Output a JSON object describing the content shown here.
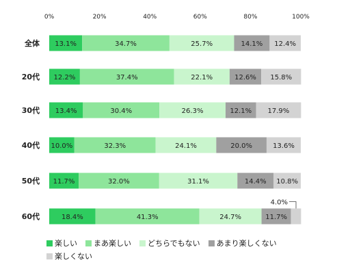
{
  "chart_data": {
    "type": "bar",
    "orientation": "horizontal",
    "stacked": true,
    "normalized": true,
    "categories": [
      "全体",
      "20代",
      "30代",
      "40代",
      "50代",
      "60代"
    ],
    "series": [
      {
        "name": "楽しい",
        "color": "#2ecc5f",
        "values": [
          13.1,
          12.2,
          13.4,
          10.0,
          11.7,
          18.4
        ]
      },
      {
        "name": "まあ楽しい",
        "color": "#8ee59b",
        "values": [
          34.7,
          37.4,
          30.4,
          32.3,
          32.0,
          41.3
        ]
      },
      {
        "name": "どちらでもない",
        "color": "#c9f5cd",
        "values": [
          25.7,
          22.1,
          26.3,
          24.1,
          31.1,
          24.7
        ]
      },
      {
        "name": "あまり楽しくない",
        "color": "#a0a0a0",
        "values": [
          14.1,
          12.6,
          12.1,
          20.0,
          14.4,
          11.7
        ]
      },
      {
        "name": "楽しくない",
        "color": "#d3d3d3",
        "values": [
          12.4,
          15.8,
          17.9,
          13.6,
          10.8,
          4.0
        ]
      }
    ],
    "data_labels": [
      [
        "13.1%",
        "34.7%",
        "25.7%",
        "14.1%",
        "12.4%"
      ],
      [
        "12.2%",
        "37.4%",
        "22.1%",
        "12.6%",
        "15.8%"
      ],
      [
        "13.4%",
        "30.4%",
        "26.3%",
        "12.1%",
        "17.9%"
      ],
      [
        "10.0%",
        "32.3%",
        "24.1%",
        "20.0%",
        "13.6%"
      ],
      [
        "11.7%",
        "32.0%",
        "31.1%",
        "14.4%",
        "10.8%"
      ],
      [
        "18.4%",
        "41.3%",
        "24.7%",
        "11.7%",
        "4.0%"
      ]
    ],
    "x_ticks": [
      "0%",
      "20%",
      "40%",
      "60%",
      "80%",
      "100%"
    ],
    "xlim": [
      0,
      100
    ],
    "legend_position": "bottom-left",
    "grid": false
  }
}
